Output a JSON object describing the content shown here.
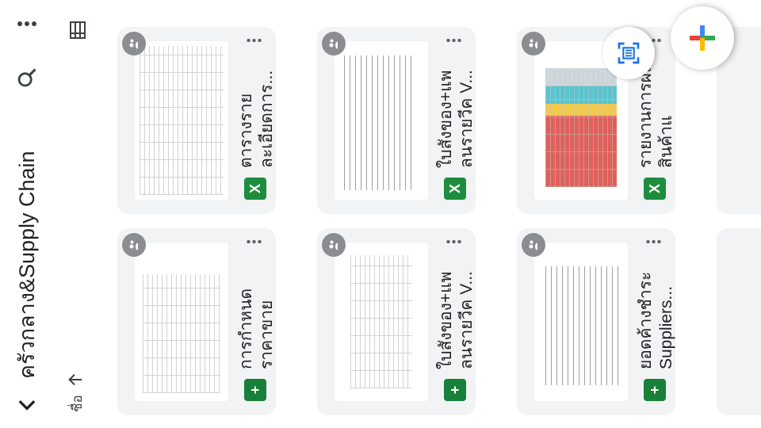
{
  "header": {
    "title": "ครัวกลาง&Supply Chain",
    "back_icon": "chevron-left-icon",
    "search_icon": "search-icon",
    "more_icon": "more-vert-icon"
  },
  "sort": {
    "label": "ชื่อ",
    "direction_icon": "arrow-up-icon",
    "view_icon": "list-view-icon"
  },
  "files": [
    {
      "name": "ตารางรายละเอียดการ...",
      "type": "excel",
      "type_label": "X",
      "shared": true
    },
    {
      "name": "การกำหนดราคาขาย",
      "type": "sheets",
      "type_label": "+",
      "shared": true
    },
    {
      "name": "ใบสั่งของ+แพลนรายวีค V...",
      "type": "excel",
      "type_label": "X",
      "shared": true
    },
    {
      "name": "ใบสั่งของ+แพลนรายวีค V...",
      "type": "sheets",
      "type_label": "+",
      "shared": true
    },
    {
      "name": "รายงานการผลิตสินค้าแ",
      "type": "excel",
      "type_label": "X",
      "shared": true
    },
    {
      "name": "ยอดค้างชำระ Suppliers...",
      "type": "sheets",
      "type_label": "+",
      "shared": true
    }
  ],
  "fab": {
    "scan_icon": "document-scan-icon",
    "new_icon": "new-plus-icon"
  }
}
